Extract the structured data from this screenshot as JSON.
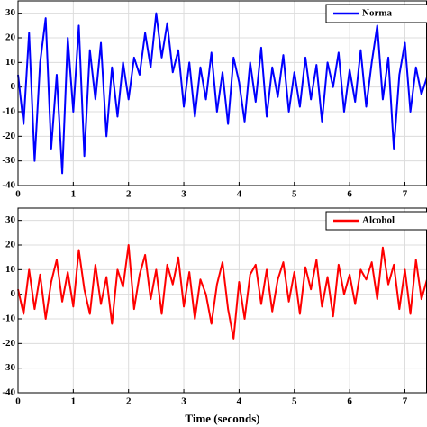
{
  "chart_data": [
    {
      "type": "line",
      "x": [
        0,
        0.1,
        0.2,
        0.3,
        0.4,
        0.5,
        0.6,
        0.7,
        0.8,
        0.9,
        1,
        1.1,
        1.2,
        1.3,
        1.4,
        1.5,
        1.6,
        1.7,
        1.8,
        1.9,
        2,
        2.1,
        2.2,
        2.3,
        2.4,
        2.5,
        2.6,
        2.7,
        2.8,
        2.9,
        3,
        3.1,
        3.2,
        3.3,
        3.4,
        3.5,
        3.6,
        3.7,
        3.8,
        3.9,
        4,
        4.1,
        4.2,
        4.3,
        4.4,
        4.5,
        4.6,
        4.7,
        4.8,
        4.9,
        5,
        5.1,
        5.2,
        5.3,
        5.4,
        5.5,
        5.6,
        5.7,
        5.8,
        5.9,
        6,
        6.1,
        6.2,
        6.3,
        6.4,
        6.5,
        6.6,
        6.7,
        6.8,
        6.9,
        7,
        7.1,
        7.2,
        7.3,
        7.4
      ],
      "series": [
        {
          "name": "Norma",
          "color": "#0000ff",
          "values": [
            5,
            -15,
            22,
            -30,
            10,
            28,
            -25,
            5,
            -35,
            20,
            -10,
            25,
            -28,
            15,
            -5,
            18,
            -20,
            8,
            -12,
            10,
            -5,
            12,
            5,
            22,
            8,
            30,
            12,
            26,
            6,
            15,
            -8,
            10,
            -12,
            8,
            -5,
            14,
            -10,
            6,
            -15,
            12,
            2,
            -14,
            10,
            -6,
            16,
            -12,
            8,
            -4,
            13,
            -10,
            6,
            -8,
            12,
            -5,
            9,
            -14,
            10,
            0,
            14,
            -10,
            7,
            -6,
            15,
            -8,
            10,
            25,
            -5,
            12,
            -25,
            5,
            18,
            -10,
            8,
            -3,
            4
          ]
        }
      ],
      "xlim": [
        0,
        7.4
      ],
      "xticks": [
        0,
        1,
        2,
        3,
        4,
        5,
        6,
        7
      ],
      "ylim": [
        -40,
        35
      ],
      "yticks": [
        -40,
        -30,
        -20,
        -10,
        0,
        10,
        20,
        30
      ],
      "grid": true,
      "legend": "upper right"
    },
    {
      "type": "line",
      "x": [
        0,
        0.1,
        0.2,
        0.3,
        0.4,
        0.5,
        0.6,
        0.7,
        0.8,
        0.9,
        1,
        1.1,
        1.2,
        1.3,
        1.4,
        1.5,
        1.6,
        1.7,
        1.8,
        1.9,
        2,
        2.1,
        2.2,
        2.3,
        2.4,
        2.5,
        2.6,
        2.7,
        2.8,
        2.9,
        3,
        3.1,
        3.2,
        3.3,
        3.4,
        3.5,
        3.6,
        3.7,
        3.8,
        3.9,
        4,
        4.1,
        4.2,
        4.3,
        4.4,
        4.5,
        4.6,
        4.7,
        4.8,
        4.9,
        5,
        5.1,
        5.2,
        5.3,
        5.4,
        5.5,
        5.6,
        5.7,
        5.8,
        5.9,
        6,
        6.1,
        6.2,
        6.3,
        6.4,
        6.5,
        6.6,
        6.7,
        6.8,
        6.9,
        7,
        7.1,
        7.2,
        7.3,
        7.4
      ],
      "series": [
        {
          "name": "Alcohol",
          "color": "#ff0000",
          "values": [
            2,
            -8,
            10,
            -6,
            8,
            -10,
            5,
            14,
            -3,
            9,
            -5,
            18,
            2,
            -8,
            12,
            -4,
            7,
            -12,
            10,
            3,
            20,
            -6,
            8,
            16,
            -2,
            10,
            -8,
            12,
            4,
            15,
            -5,
            9,
            -10,
            6,
            0,
            -12,
            4,
            13,
            -6,
            -18,
            5,
            -10,
            8,
            12,
            -4,
            10,
            -7,
            6,
            13,
            -3,
            9,
            -8,
            11,
            2,
            14,
            -5,
            7,
            -9,
            12,
            0,
            8,
            -4,
            10,
            6,
            13,
            -2,
            19,
            4,
            12,
            -6,
            10,
            -8,
            14,
            -2,
            6
          ]
        }
      ],
      "xlabel": "Time (seconds)",
      "xlim": [
        0,
        7.4
      ],
      "xticks": [
        0,
        1,
        2,
        3,
        4,
        5,
        6,
        7
      ],
      "ylim": [
        -40,
        35
      ],
      "yticks": [
        -40,
        -30,
        -20,
        -10,
        0,
        10,
        20,
        30
      ],
      "grid": true,
      "legend": "upper right"
    }
  ]
}
